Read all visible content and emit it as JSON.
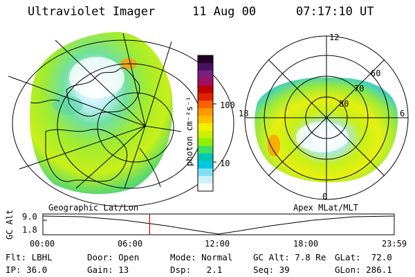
{
  "header": {
    "title": "Ultraviolet Imager",
    "date": "11 Aug 00",
    "time": "07:17:10 UT"
  },
  "left_panel": {
    "caption": "Geographic Lat/Lon"
  },
  "right_panel": {
    "caption": "Apex MLat/MLT",
    "lat_labels": [
      "60",
      "70",
      "80"
    ],
    "mlt_labels": [
      "12",
      "18",
      "6",
      "0"
    ]
  },
  "colorbar": {
    "unit_label": "photon cm⁻²s⁻¹",
    "ticks": [
      "100",
      "10"
    ],
    "colors": [
      "#220022",
      "#4a1060",
      "#7a2080",
      "#a01060",
      "#c00000",
      "#e02000",
      "#ff6000",
      "#ff9900",
      "#ffc000",
      "#f0f000",
      "#c8f000",
      "#90f000",
      "#40e060",
      "#00c8b0",
      "#00c8e0",
      "#80e0f0",
      "#d0f0f8",
      "#ffffff"
    ]
  },
  "timeline": {
    "axis_label": "GC Alt",
    "y_ticks": [
      "9.0",
      "1.8"
    ],
    "x_ticks": [
      "00:00",
      "06:00",
      "12:00",
      "18:00",
      "23:59"
    ],
    "current_time_fraction": 0.304,
    "marker_color": "#cc0000"
  },
  "footer": {
    "flt": "Flt: LBHL",
    "ip": "IP: 36.0",
    "door": "Door: Open",
    "gain": "Gain: 13",
    "mode": "Mode: Normal",
    "dsp": "Dsp:   2.1",
    "gcalt": "GC Alt: 7.8 Re",
    "seq": "Seq: 39",
    "glat": "GLat:  72.0",
    "glon": "GLon: 286.1"
  }
}
